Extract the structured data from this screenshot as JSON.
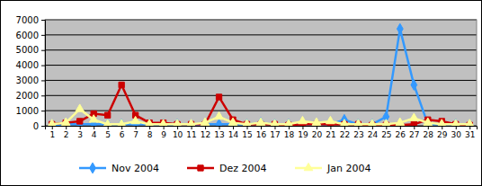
{
  "chart_data": {
    "type": "line",
    "categories": [
      "1",
      "2",
      "3",
      "4",
      "5",
      "6",
      "7",
      "8",
      "9",
      "10",
      "11",
      "12",
      "13",
      "14",
      "15",
      "16",
      "17",
      "18",
      "19",
      "20",
      "21",
      "22",
      "23",
      "24",
      "25",
      "26",
      "27",
      "28",
      "29",
      "30",
      "31"
    ],
    "series": [
      {
        "name": "Nov 2004",
        "color": "#3399ff",
        "marker": "diamond",
        "values": [
          50,
          100,
          100,
          100,
          100,
          100,
          100,
          100,
          100,
          100,
          50,
          100,
          100,
          100,
          100,
          200,
          100,
          100,
          100,
          100,
          100,
          400,
          100,
          100,
          600,
          6400,
          2700,
          100,
          100,
          100,
          50
        ]
      },
      {
        "name": "Dez 2004",
        "color": "#cc0000",
        "marker": "square",
        "values": [
          100,
          200,
          300,
          800,
          700,
          2700,
          700,
          200,
          200,
          100,
          100,
          100,
          1900,
          400,
          100,
          100,
          100,
          50,
          100,
          100,
          100,
          100,
          100,
          50,
          50,
          50,
          100,
          400,
          300,
          100,
          50
        ]
      },
      {
        "name": "Jan 2004",
        "color": "#ffff99",
        "marker": "triangle",
        "values": [
          100,
          200,
          1100,
          400,
          100,
          100,
          300,
          100,
          100,
          100,
          100,
          200,
          600,
          200,
          100,
          200,
          100,
          100,
          300,
          200,
          300,
          100,
          100,
          100,
          100,
          200,
          500,
          200,
          100,
          100,
          100
        ]
      }
    ],
    "ylim": [
      0,
      7000
    ],
    "yticks": [
      0,
      1000,
      2000,
      3000,
      4000,
      5000,
      6000,
      7000
    ],
    "grid": true,
    "legend": "bottom"
  }
}
